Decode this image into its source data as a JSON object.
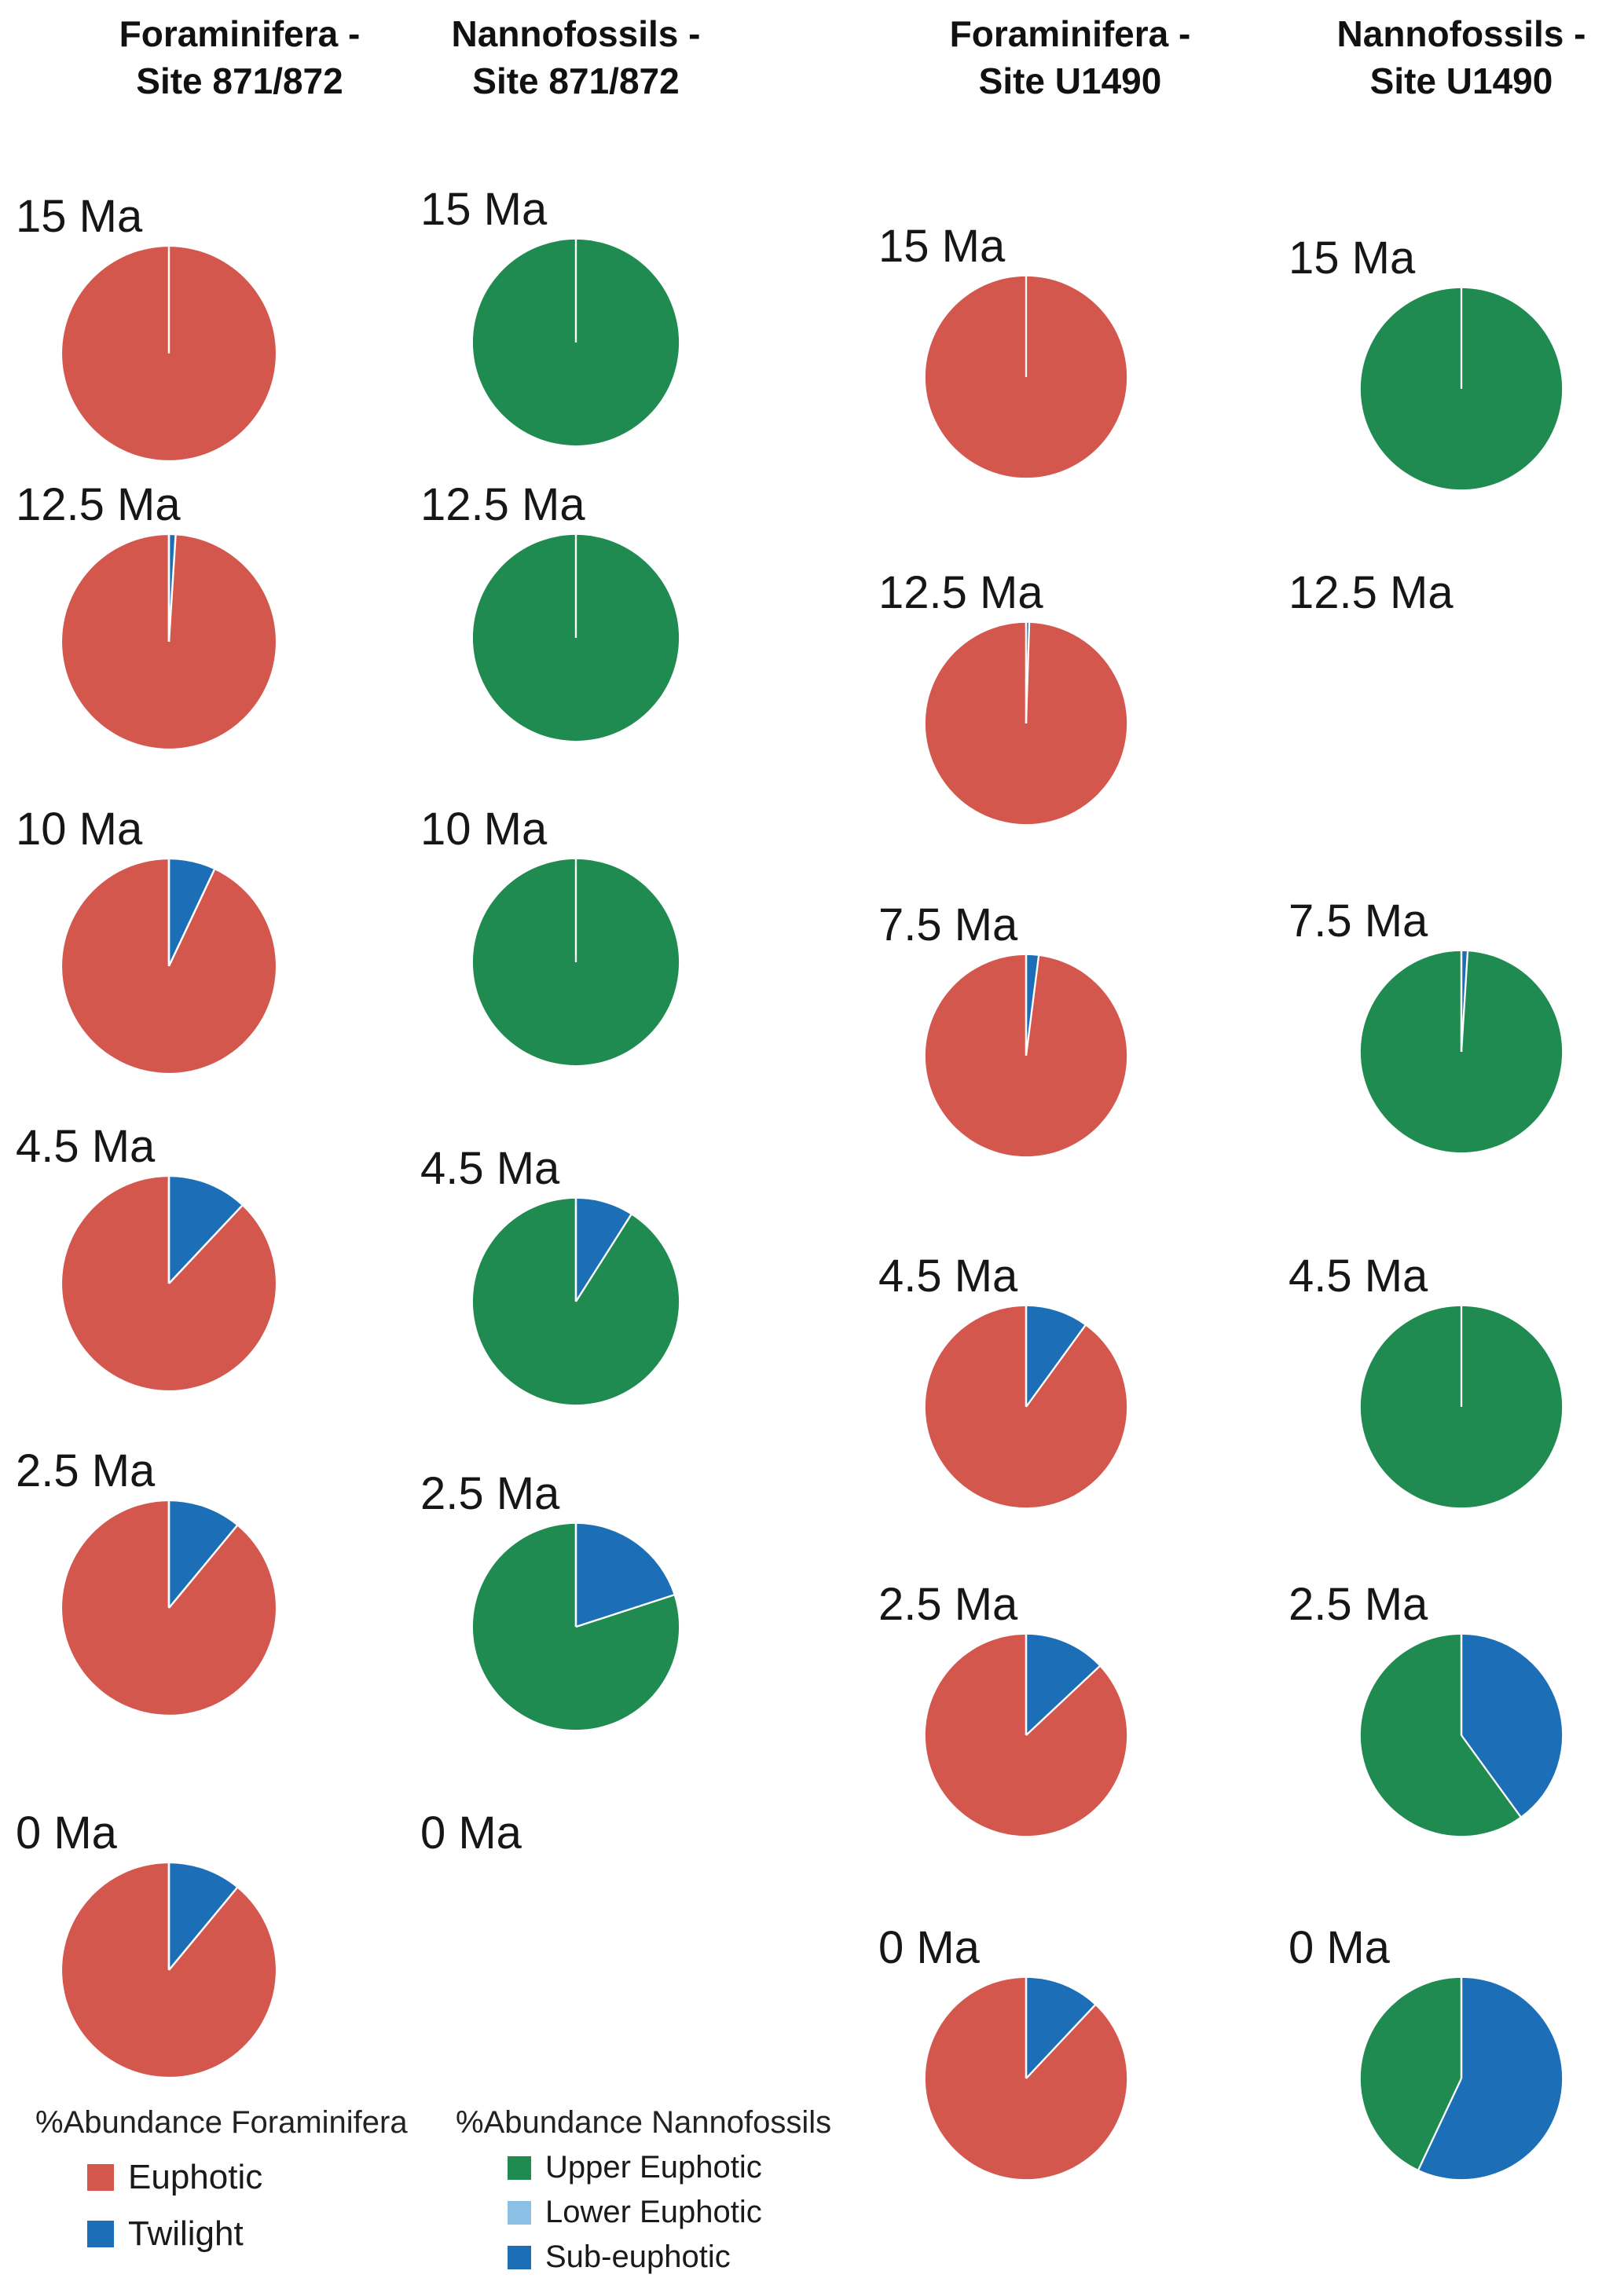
{
  "colors": {
    "Euphotic": "#d4574e",
    "Twilight": "#1c6fb7",
    "Upper Euphotic": "#1f8b50",
    "Lower Euphotic": "#8bbfe4",
    "Sub-euphotic": "#1c6fb7",
    "seam": "#ffffff"
  },
  "headers": [
    {
      "text": "Foraminifera -\nSite 871/872"
    },
    {
      "text": "Nannofossils -\nSite 871/872"
    },
    {
      "text": "Foraminifera -\nSite U1490"
    },
    {
      "text": "Nannofossils -\nSite U1490"
    }
  ],
  "chart_data": [
    {
      "type": "pie",
      "title": "Foraminifera - Site 871/872",
      "value_unit": "% abundance",
      "categories": [
        "Euphotic",
        "Twilight"
      ],
      "draw_order": [
        "Twilight",
        "Euphotic"
      ],
      "pies": [
        {
          "label": "15 Ma",
          "values": {
            "Euphotic": 100,
            "Twilight": 0
          }
        },
        {
          "label": "12.5 Ma",
          "values": {
            "Euphotic": 99,
            "Twilight": 1
          }
        },
        {
          "label": "10 Ma",
          "values": {
            "Euphotic": 93,
            "Twilight": 7
          }
        },
        {
          "label": "4.5 Ma",
          "values": {
            "Euphotic": 88,
            "Twilight": 12
          }
        },
        {
          "label": "2.5 Ma",
          "values": {
            "Euphotic": 89,
            "Twilight": 11
          }
        },
        {
          "label": "0 Ma",
          "values": {
            "Euphotic": 89,
            "Twilight": 11
          }
        }
      ]
    },
    {
      "type": "pie",
      "title": "Nannofossils - Site 871/872",
      "value_unit": "% abundance",
      "categories": [
        "Upper Euphotic",
        "Lower Euphotic",
        "Sub-euphotic"
      ],
      "draw_order": [
        "Sub-euphotic",
        "Lower Euphotic",
        "Upper Euphotic"
      ],
      "pies": [
        {
          "label": "15 Ma",
          "values": {
            "Upper Euphotic": 100,
            "Lower Euphotic": 0,
            "Sub-euphotic": 0
          }
        },
        {
          "label": "12.5 Ma",
          "values": {
            "Upper Euphotic": 100,
            "Lower Euphotic": 0,
            "Sub-euphotic": 0
          }
        },
        {
          "label": "10 Ma",
          "values": {
            "Upper Euphotic": 100,
            "Lower Euphotic": 0,
            "Sub-euphotic": 0
          }
        },
        {
          "label": "4.5 Ma",
          "values": {
            "Upper Euphotic": 91,
            "Lower Euphotic": 0,
            "Sub-euphotic": 9
          }
        },
        {
          "label": "2.5 Ma",
          "values": {
            "Upper Euphotic": 80,
            "Lower Euphotic": 0,
            "Sub-euphotic": 20
          }
        },
        {
          "label": "0 Ma",
          "values": null
        }
      ]
    },
    {
      "type": "pie",
      "title": "Foraminifera - Site U1490",
      "value_unit": "% abundance",
      "categories": [
        "Euphotic",
        "Twilight"
      ],
      "draw_order": [
        "Twilight",
        "Euphotic"
      ],
      "pies": [
        {
          "label": "15 Ma",
          "values": {
            "Euphotic": 100,
            "Twilight": 0
          }
        },
        {
          "label": "12.5 Ma",
          "values": {
            "Euphotic": 99.5,
            "Twilight": 0.5
          }
        },
        {
          "label": "7.5 Ma",
          "values": {
            "Euphotic": 98,
            "Twilight": 2
          }
        },
        {
          "label": "4.5 Ma",
          "values": {
            "Euphotic": 90,
            "Twilight": 10
          }
        },
        {
          "label": "2.5 Ma",
          "values": {
            "Euphotic": 87,
            "Twilight": 13
          }
        },
        {
          "label": "0 Ma",
          "values": {
            "Euphotic": 88,
            "Twilight": 12
          }
        }
      ]
    },
    {
      "type": "pie",
      "title": "Nannofossils - Site U1490",
      "value_unit": "% abundance",
      "categories": [
        "Upper Euphotic",
        "Lower Euphotic",
        "Sub-euphotic"
      ],
      "draw_order": [
        "Sub-euphotic",
        "Lower Euphotic",
        "Upper Euphotic"
      ],
      "pies": [
        {
          "label": "15 Ma",
          "values": {
            "Upper Euphotic": 100,
            "Lower Euphotic": 0,
            "Sub-euphotic": 0
          }
        },
        {
          "label": "12.5 Ma",
          "values": null
        },
        {
          "label": "7.5 Ma",
          "values": {
            "Upper Euphotic": 99,
            "Lower Euphotic": 0,
            "Sub-euphotic": 1
          }
        },
        {
          "label": "4.5 Ma",
          "values": {
            "Upper Euphotic": 100,
            "Lower Euphotic": 0,
            "Sub-euphotic": 0
          }
        },
        {
          "label": "2.5 Ma",
          "values": {
            "Upper Euphotic": 60,
            "Lower Euphotic": 0,
            "Sub-euphotic": 40
          }
        },
        {
          "label": "0 Ma",
          "values": {
            "Upper Euphotic": 43,
            "Lower Euphotic": 0,
            "Sub-euphotic": 57
          }
        }
      ]
    }
  ],
  "legends": [
    {
      "title": "%Abundance Foraminifera",
      "items": [
        {
          "label": "Euphotic",
          "color": "#d4574e"
        },
        {
          "label": "Twilight",
          "color": "#1c6fb7"
        }
      ]
    },
    {
      "title": "%Abundance Nannofossils",
      "items": [
        {
          "label": "Upper Euphotic",
          "color": "#1f8b50"
        },
        {
          "label": "Lower Euphotic",
          "color": "#8bbfe4"
        },
        {
          "label": "Sub-euphotic",
          "color": "#1c6fb7"
        }
      ]
    }
  ]
}
